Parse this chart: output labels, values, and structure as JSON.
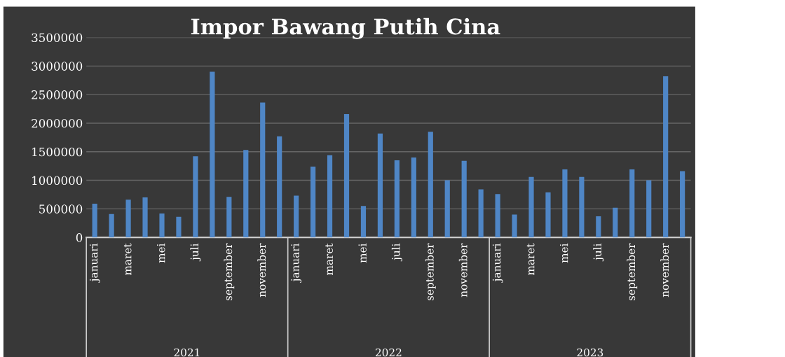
{
  "chart_data": {
    "type": "bar",
    "title": "Impor Bawang Putih Cina",
    "categories": [
      "januari",
      null,
      "maret",
      null,
      "mei",
      null,
      "juli",
      null,
      "september",
      null,
      "november",
      null,
      "januari",
      null,
      "maret",
      null,
      "mei",
      null,
      "juli",
      null,
      "september",
      null,
      "november",
      null,
      "januari",
      null,
      "maret",
      null,
      "mei",
      null,
      "juli",
      null,
      "september",
      null,
      "november",
      null
    ],
    "values": [
      590000,
      410000,
      660000,
      700000,
      420000,
      360000,
      1420000,
      2900000,
      710000,
      1530000,
      2360000,
      1770000,
      730000,
      1240000,
      1440000,
      2160000,
      550000,
      1820000,
      1350000,
      1400000,
      1850000,
      1000000,
      1340000,
      840000,
      760000,
      400000,
      1060000,
      790000,
      1190000,
      1060000,
      370000,
      520000,
      1190000,
      1000000,
      2820000,
      1160000
    ],
    "color": "#4f86c6",
    "annotations": [
      "2021",
      "2022",
      "2023"
    ],
    "ylim": [
      0,
      3500000
    ],
    "yticks": [
      0,
      500000,
      1000000,
      1500000,
      2000000,
      2500000,
      3000000,
      3500000
    ],
    "grid": "y",
    "legend": false
  }
}
